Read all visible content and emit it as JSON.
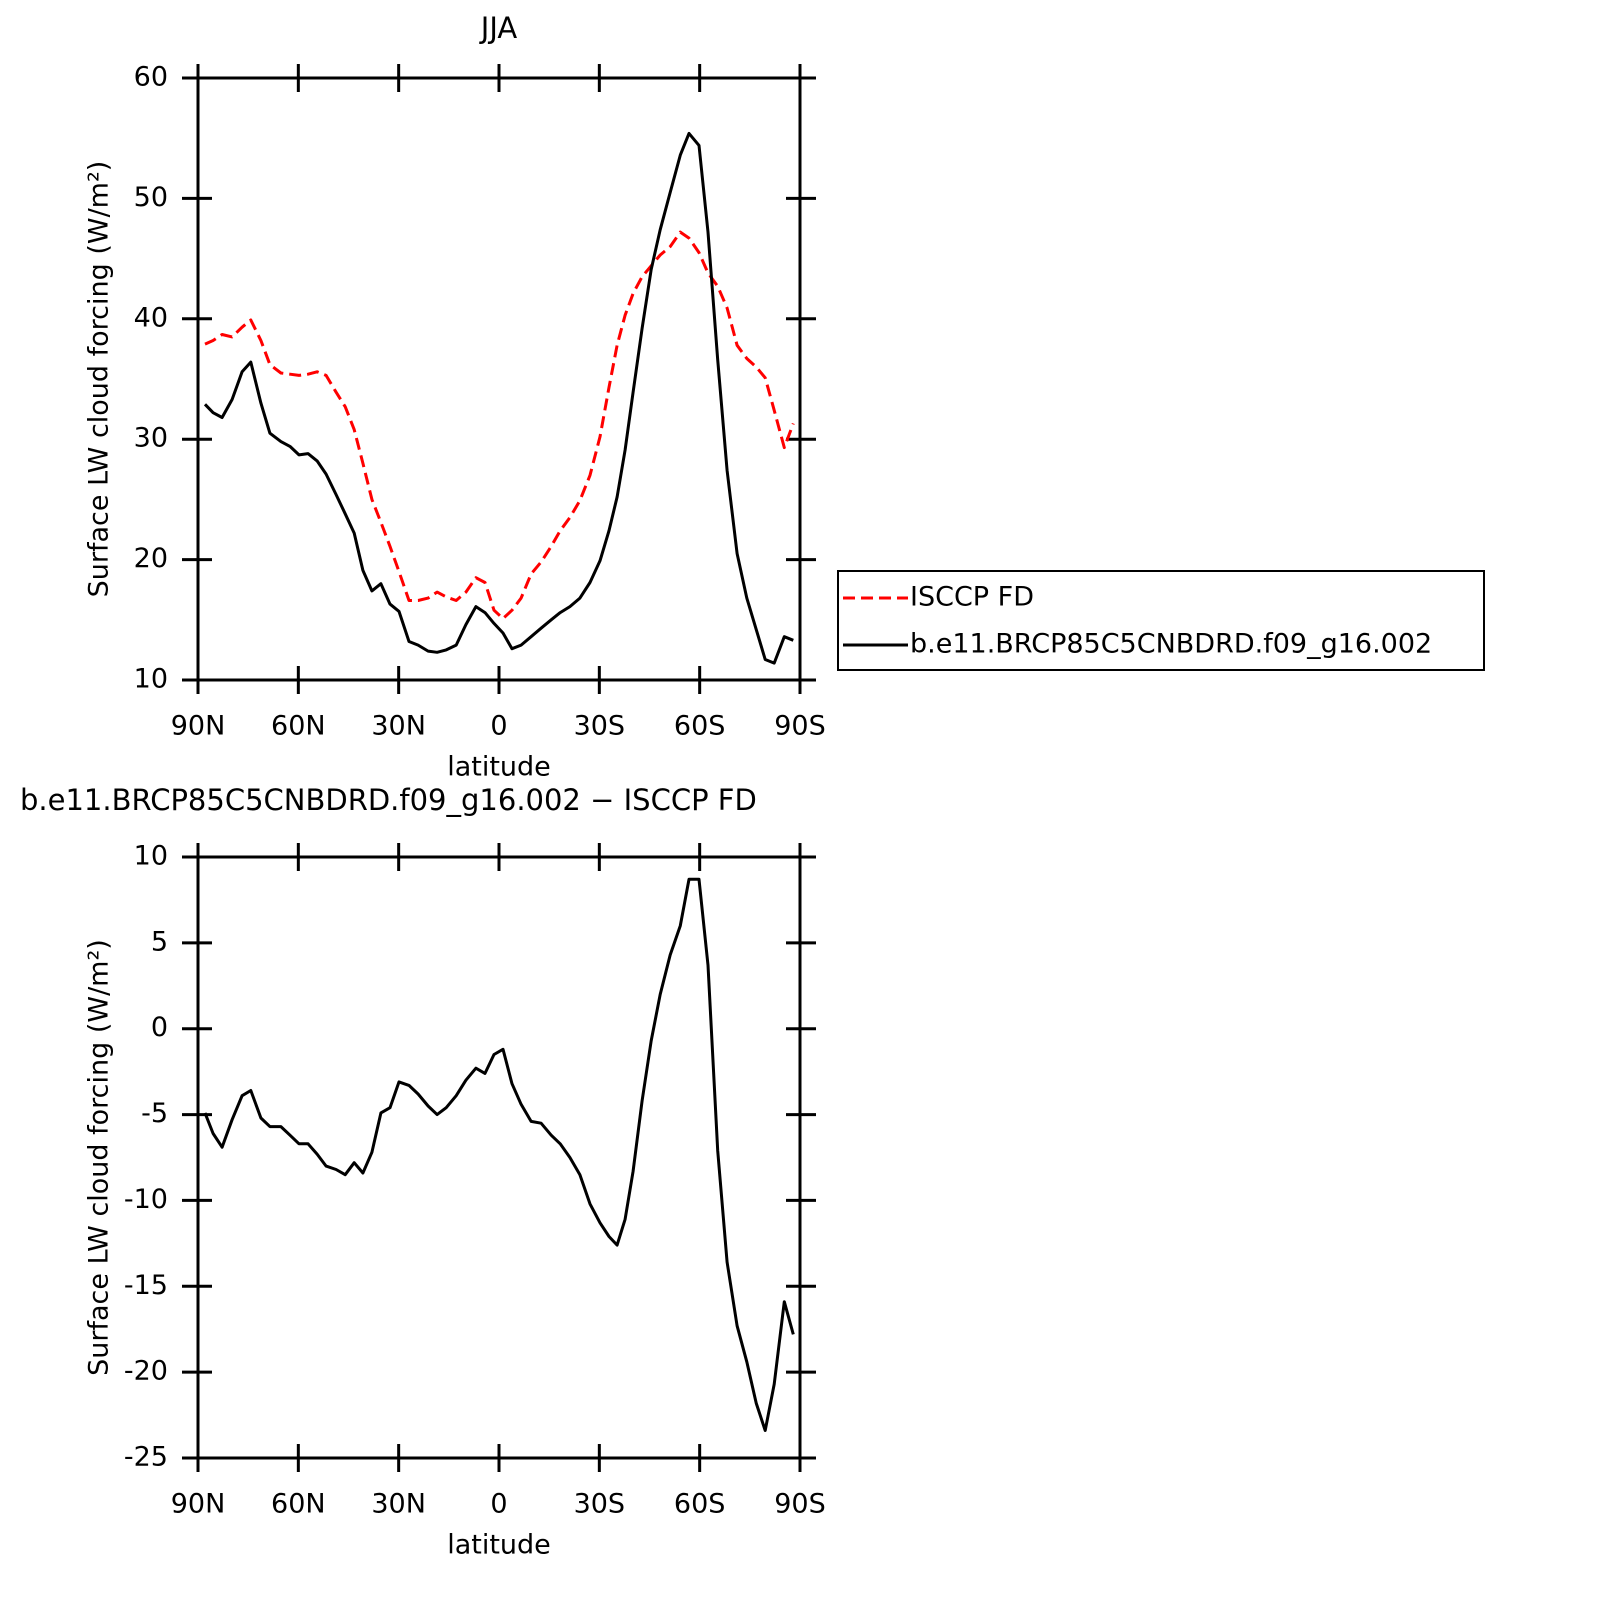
{
  "chart_data": [
    {
      "type": "line",
      "title": "JJA",
      "x_label": "latitude",
      "y_label": "Surface LW cloud forcing (W/m²)",
      "x": [
        87.9,
        85.5,
        82.8,
        79.8,
        76.8,
        74.2,
        71.2,
        68.5,
        65.2,
        62.5,
        59.8,
        57.1,
        54.4,
        51.7,
        48.7,
        46.0,
        43.3,
        40.7,
        38.0,
        35.3,
        32.6,
        29.9,
        26.9,
        24.2,
        21.2,
        18.5,
        15.8,
        12.8,
        9.9,
        6.9,
        4.2,
        1.5,
        -1.2,
        -3.9,
        -6.6,
        -9.6,
        -12.6,
        -15.6,
        -18.3,
        -21.2,
        -24.2,
        -27.2,
        -30.2,
        -32.9,
        -35.3,
        -37.7,
        -40.1,
        -42.8,
        -45.5,
        -48.2,
        -51.2,
        -54.2,
        -56.8,
        -59.8,
        -62.5,
        -65.4,
        -68.2,
        -71.2,
        -74.1,
        -76.9,
        -79.6,
        -82.3,
        -85.3,
        -88.0
      ],
      "series": [
        {
          "name": "ISCCP FD",
          "color": "#ff0000",
          "dash": true,
          "values": [
            37.9,
            38.2,
            38.7,
            38.5,
            39.3,
            39.9,
            38.2,
            36.2,
            35.5,
            35.4,
            35.3,
            35.4,
            35.6,
            35.3,
            33.9,
            32.7,
            30.8,
            28.0,
            25.0,
            23.1,
            21.1,
            19.0,
            16.6,
            16.6,
            16.8,
            17.3,
            16.9,
            16.6,
            17.3,
            18.5,
            18.1,
            15.8,
            15.1,
            15.8,
            16.8,
            18.8,
            19.8,
            21.1,
            22.4,
            23.5,
            24.9,
            27.0,
            30.2,
            34.3,
            37.8,
            40.3,
            42.1,
            43.5,
            44.4,
            45.3,
            46.0,
            47.2,
            46.7,
            45.5,
            43.8,
            42.7,
            40.9,
            37.8,
            36.7,
            36.0,
            35.1,
            32.4,
            29.3,
            31.3
          ]
        },
        {
          "name": "b.e11.BRCP85C5CNBDRD.f09_g16.002",
          "color": "#000000",
          "dash": false,
          "values": [
            32.9,
            32.2,
            31.8,
            33.3,
            35.6,
            36.4,
            33.0,
            30.5,
            29.8,
            29.4,
            28.7,
            28.8,
            28.2,
            27.1,
            25.4,
            23.8,
            22.2,
            19.1,
            17.4,
            18.0,
            16.3,
            15.7,
            13.2,
            12.9,
            12.4,
            12.3,
            12.5,
            12.9,
            14.6,
            16.1,
            15.6,
            14.7,
            13.9,
            12.6,
            12.9,
            13.6,
            14.3,
            15.0,
            15.6,
            16.1,
            16.8,
            18.1,
            19.9,
            22.4,
            25.2,
            29.1,
            33.9,
            39.2,
            44.1,
            47.4,
            50.5,
            53.6,
            55.4,
            54.4,
            47.2,
            36.6,
            27.4,
            20.5,
            16.8,
            14.2,
            11.7,
            11.4,
            13.6,
            13.3
          ]
        }
      ],
      "xlim": [
        90,
        -90
      ],
      "xticks": [
        {
          "value": 90,
          "label": "90N"
        },
        {
          "value": 60,
          "label": "60N"
        },
        {
          "value": 30,
          "label": "30N"
        },
        0,
        {
          "value": -30,
          "label": "30S"
        },
        {
          "value": -60,
          "label": "60S"
        },
        {
          "value": -90,
          "label": "90S"
        }
      ],
      "ylim": [
        10,
        60
      ],
      "yticks": [
        10,
        20,
        30,
        40,
        50,
        60
      ],
      "legend": "right"
    },
    {
      "type": "line",
      "title": "b.e11.BRCP85C5CNBDRD.f09_g16.002 − ISCCP FD",
      "x_label": "latitude",
      "y_label": "Surface LW cloud forcing (W/m²)",
      "x": [
        87.9,
        85.5,
        82.8,
        79.8,
        76.8,
        74.2,
        71.2,
        68.5,
        65.2,
        62.5,
        59.8,
        57.1,
        54.4,
        51.7,
        48.7,
        46.0,
        43.3,
        40.7,
        38.0,
        35.3,
        32.6,
        29.9,
        26.9,
        24.2,
        21.2,
        18.5,
        15.8,
        12.8,
        9.9,
        6.9,
        4.2,
        1.5,
        -1.2,
        -3.9,
        -6.6,
        -9.6,
        -12.6,
        -15.6,
        -18.3,
        -21.2,
        -24.2,
        -27.2,
        -30.2,
        -32.9,
        -35.3,
        -37.7,
        -40.1,
        -42.8,
        -45.5,
        -48.2,
        -51.2,
        -54.2,
        -56.8,
        -59.8,
        -62.5,
        -65.4,
        -68.2,
        -71.2,
        -74.1,
        -76.9,
        -79.6,
        -82.3,
        -85.3,
        -88.0
      ],
      "series": [
        {
          "color": "#000000",
          "dash": false,
          "values": [
            -4.9,
            -6.1,
            -6.9,
            -5.3,
            -3.9,
            -3.6,
            -5.2,
            -5.7,
            -5.7,
            -6.2,
            -6.7,
            -6.7,
            -7.3,
            -8.0,
            -8.2,
            -8.5,
            -7.8,
            -8.4,
            -7.2,
            -4.9,
            -4.6,
            -3.1,
            -3.3,
            -3.8,
            -4.5,
            -5.0,
            -4.6,
            -3.9,
            -3.0,
            -2.3,
            -2.6,
            -1.5,
            -1.2,
            -3.2,
            -4.4,
            -5.4,
            -5.5,
            -6.2,
            -6.7,
            -7.5,
            -8.5,
            -10.2,
            -11.3,
            -12.1,
            -12.6,
            -11.1,
            -8.3,
            -4.2,
            -0.7,
            2.0,
            4.3,
            6.0,
            8.7,
            8.7,
            3.7,
            -7.1,
            -13.6,
            -17.3,
            -19.4,
            -21.8,
            -23.4,
            -20.7,
            -15.9,
            -17.8
          ]
        }
      ],
      "xlim": [
        90,
        -90
      ],
      "xticks": [
        {
          "value": 90,
          "label": "90N"
        },
        {
          "value": 60,
          "label": "60N"
        },
        {
          "value": 30,
          "label": "30N"
        },
        0,
        {
          "value": -30,
          "label": "30S"
        },
        {
          "value": -60,
          "label": "60S"
        },
        {
          "value": -90,
          "label": "90S"
        }
      ],
      "ylim": [
        -25,
        10
      ],
      "yticks": [
        -25,
        -20,
        -15,
        -10,
        -5,
        0,
        5,
        10
      ]
    }
  ]
}
